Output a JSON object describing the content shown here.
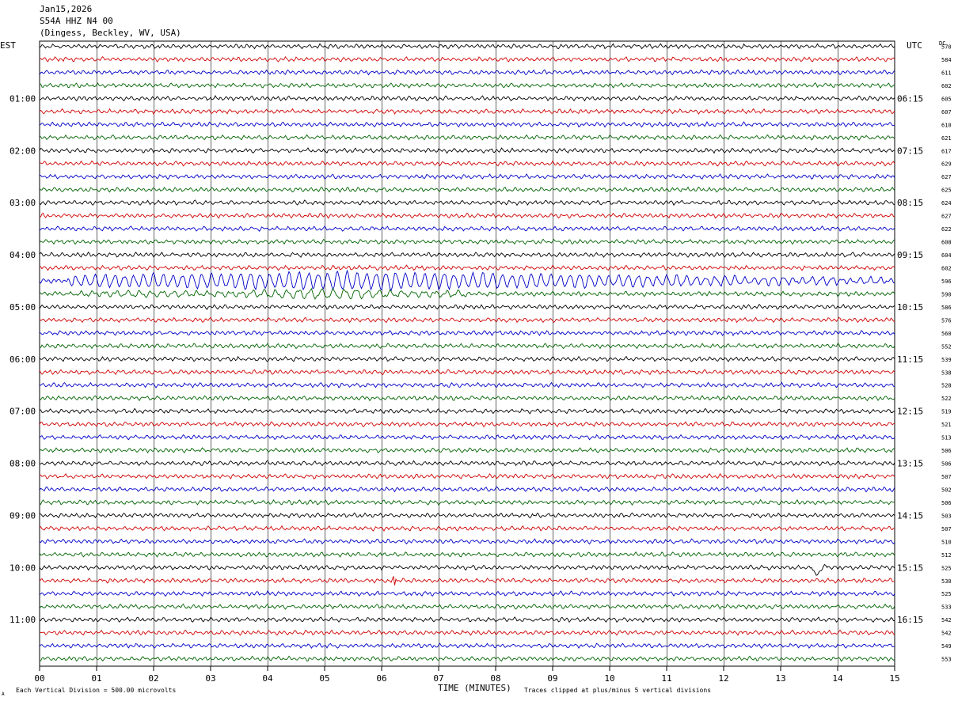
{
  "header": {
    "date": "Jan15,2026",
    "station": "S54A HHZ N4 00",
    "location": "(Dingess, Beckley, WV, USA)"
  },
  "labels": {
    "left_tz": "EST",
    "right_tz": "UTC",
    "dc_header": "DC",
    "xlabel": "TIME (MINUTES)",
    "footer_left": "Each Vertical Division =  500.00 microvolts",
    "footer_right": "Traces clipped at plus/minus 5 vertical divisions",
    "corner_mark": "A"
  },
  "colors": {
    "trace_cycle": [
      "#000000",
      "#d00000",
      "#0000c8",
      "#006400"
    ],
    "grid": "#000000",
    "background": "#ffffff"
  },
  "chart_data": {
    "type": "line",
    "title": "S54A HHZ N4 00",
    "xlabel": "TIME (MINUTES)",
    "xlim": [
      0,
      15
    ],
    "x_ticks": [
      "00",
      "01",
      "02",
      "03",
      "04",
      "05",
      "06",
      "07",
      "08",
      "09",
      "10",
      "11",
      "12",
      "13",
      "14",
      "15"
    ],
    "trace_count": 48,
    "traces_per_hour": 4,
    "minutes_per_trace": 15,
    "left_hour_labels": [
      "01:00",
      "02:00",
      "03:00",
      "04:00",
      "05:00",
      "06:00",
      "07:00",
      "08:00",
      "09:00",
      "10:00",
      "11:00"
    ],
    "right_hour_labels": [
      "06:15",
      "07:15",
      "08:15",
      "09:15",
      "10:15",
      "11:15",
      "12:15",
      "13:15",
      "14:15",
      "15:15",
      "16:15"
    ],
    "dc_offsets": [
      570,
      584,
      611,
      602,
      605,
      607,
      610,
      621,
      617,
      629,
      627,
      625,
      624,
      627,
      622,
      608,
      604,
      602,
      596,
      590,
      586,
      576,
      560,
      552,
      539,
      538,
      528,
      522,
      519,
      521,
      513,
      506,
      506,
      507,
      502,
      506,
      503,
      507,
      510,
      512,
      525,
      530,
      525,
      533,
      542,
      542,
      549,
      553
    ],
    "noise_amplitude_divisions": 0.35,
    "events": [
      {
        "trace_index": 18,
        "start_minute": 0.5,
        "end_minute": 15,
        "peak_minute": 5.5,
        "amplitude_divisions": 1.3,
        "period_minutes": 0.17,
        "description": "long-period surface waves"
      },
      {
        "trace_index": 19,
        "start_minute": 0.3,
        "end_minute": 7.5,
        "peak_minute": 5.2,
        "amplitude_divisions": 0.6,
        "period_minutes": 0.2,
        "description": "long-period surface waves"
      },
      {
        "trace_index": 40,
        "start_minute": 13.55,
        "end_minute": 13.85,
        "peak_minute": 13.65,
        "amplitude_divisions": 1.1,
        "period_minutes": 0.02,
        "description": "local burst"
      },
      {
        "trace_index": 41,
        "start_minute": 6.15,
        "end_minute": 6.3,
        "peak_minute": 6.2,
        "amplitude_divisions": 0.8,
        "period_minutes": 0.015,
        "description": "spike"
      }
    ]
  }
}
